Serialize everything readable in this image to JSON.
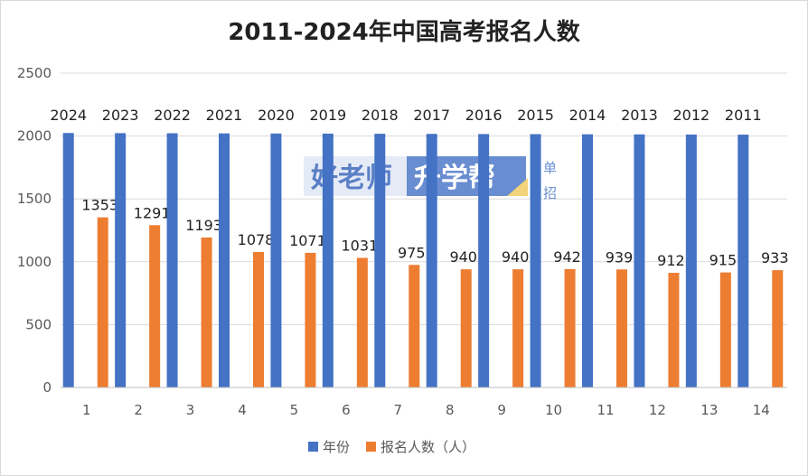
{
  "chart_data": {
    "type": "bar",
    "title": "2011-2024年中国高考报名人数",
    "categories": [
      "1",
      "2",
      "3",
      "4",
      "5",
      "6",
      "7",
      "8",
      "9",
      "10",
      "11",
      "12",
      "13",
      "14"
    ],
    "series": [
      {
        "name": "年份",
        "color": "#4472c4",
        "values": [
          2024,
          2023,
          2022,
          2021,
          2020,
          2019,
          2018,
          2017,
          2016,
          2015,
          2014,
          2013,
          2012,
          2011
        ]
      },
      {
        "name": "报名人数（人）",
        "color": "#ed7d31",
        "values": [
          1353,
          1291,
          1193,
          1078,
          1071,
          1031,
          975,
          940,
          940,
          942,
          939,
          912,
          915,
          933
        ]
      }
    ],
    "ylim": [
      0,
      2500
    ],
    "yticks": [
      0,
      500,
      1000,
      1500,
      2000,
      2500
    ],
    "grid": true,
    "legend_position": "bottom",
    "watermark": {
      "part1": "好老师",
      "part2": "升学帮",
      "side": [
        "单",
        "招"
      ]
    }
  }
}
